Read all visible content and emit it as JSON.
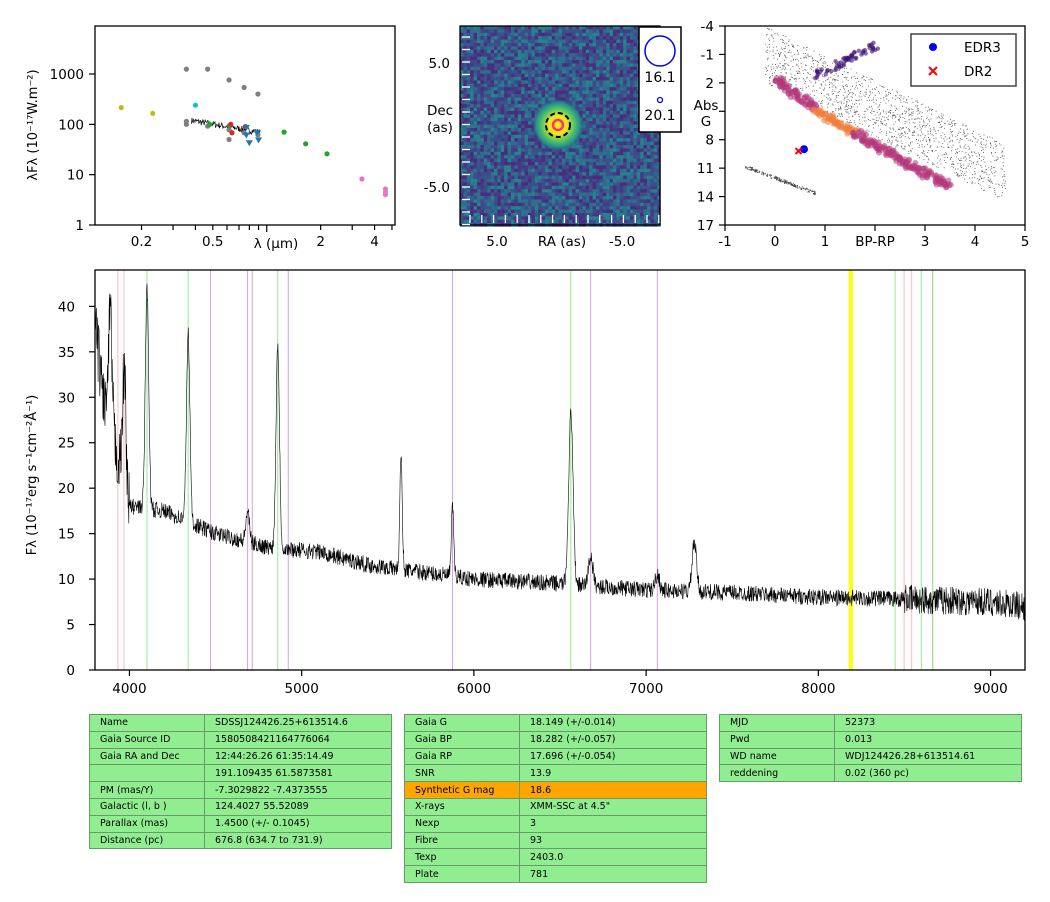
{
  "sed": {
    "ylabel": "λFλ (10⁻¹⁷W.m⁻²)",
    "xlabel": "λ (μm)",
    "yticks": [
      "1",
      "10",
      "100",
      "1000"
    ],
    "xticks": [
      "0.2",
      "0.5",
      "2",
      "4"
    ],
    "xlim": [
      0.11,
      5.2
    ],
    "ylim": [
      1,
      9000
    ],
    "xscale": "log",
    "yscale": "log"
  },
  "image": {
    "ylabel_line1": "Dec",
    "ylabel_line2": "(as)",
    "xlabel": "RA (as)",
    "yticks": [
      "5.0",
      "-5.0"
    ],
    "xticks": [
      "5.0",
      "-5.0"
    ],
    "legend": [
      "16.1",
      "20.1"
    ]
  },
  "hr": {
    "ylabel_line1": "Abs",
    "ylabel_line2": "G",
    "xlabel": "BP-RP",
    "yticks": [
      "-4",
      "-1",
      "2",
      "5",
      "8",
      "11",
      "14",
      "17"
    ],
    "xticks": [
      "-1",
      "0",
      "1",
      "3",
      "4",
      "5"
    ],
    "legend": [
      "EDR3",
      "DR2"
    ],
    "colors": {
      "edr3": "#0000ff",
      "dr2": "#ff0000"
    }
  },
  "chart_data": [
    {
      "type": "scatter",
      "panel": "sed",
      "series": [
        {
          "color": "#bcbd22",
          "x": [
            0.154,
            0.231
          ],
          "y": [
            215,
            165
          ]
        },
        {
          "color": "#7f7f7f",
          "x": [
            0.356,
            0.468,
            0.616,
            0.748,
            0.893,
            0.356,
            0.468,
            0.616,
            0.748,
            0.893,
            0.356,
            0.616
          ],
          "y": [
            1250,
            1250,
            760,
            540,
            400,
            100,
            92,
            78,
            68,
            62,
            115,
            50
          ]
        },
        {
          "color": "#17becf",
          "x": [
            0.4
          ],
          "y": [
            240
          ]
        },
        {
          "color": "#2ca02c",
          "x": [
            0.48,
            0.62,
            1.25,
            1.65,
            2.17
          ],
          "y": [
            100,
            95,
            70,
            41,
            26
          ]
        },
        {
          "color": "#d62728",
          "x": [
            0.63,
            0.64,
            0.76
          ],
          "y": [
            100,
            68,
            90
          ]
        },
        {
          "color": "#1f77b4",
          "x": [
            0.77,
            0.77,
            0.8,
            0.88,
            0.9
          ],
          "y": [
            85,
            60,
            42,
            68,
            48
          ]
        },
        {
          "color": "#e377c2",
          "x": [
            3.4,
            4.6,
            4.6,
            4.6
          ],
          "y": [
            8.2,
            5.2,
            4.5,
            4.0
          ]
        }
      ],
      "spectrum_line": {
        "x_range_um": [
          0.38,
          0.92
        ],
        "y_start": 120,
        "y_end": 70
      }
    },
    {
      "type": "scatter",
      "panel": "hr",
      "x_range": [
        -1,
        5
      ],
      "y_range": [
        17,
        -4
      ],
      "series": [
        {
          "name": "EDR3",
          "marker": "circle",
          "x": [
            0.58
          ],
          "y": [
            9.0
          ]
        },
        {
          "name": "DR2",
          "marker": "x",
          "x": [
            0.47
          ],
          "y": [
            9.2
          ]
        }
      ]
    },
    {
      "type": "line",
      "panel": "spectrum",
      "ylabel": "Fλ (10⁻¹⁷erg s⁻¹cm⁻²Å⁻¹)",
      "xlim": [
        3800,
        9200
      ],
      "ylim": [
        0,
        44
      ],
      "xticks": [
        "4000",
        "5000",
        "6000",
        "7000",
        "8000",
        "9000"
      ],
      "yticks": [
        "0",
        "5",
        "10",
        "15",
        "20",
        "25",
        "30",
        "35",
        "40"
      ],
      "continuum": [
        [
          3800,
          38
        ],
        [
          3850,
          30
        ],
        [
          3950,
          22
        ],
        [
          4000,
          18
        ],
        [
          4200,
          17.5
        ],
        [
          4500,
          15
        ],
        [
          4800,
          13.5
        ],
        [
          5100,
          13
        ],
        [
          5400,
          11.5
        ],
        [
          5800,
          10.5
        ],
        [
          6000,
          10
        ],
        [
          6500,
          9.5
        ],
        [
          7000,
          8.8
        ],
        [
          7500,
          8.5
        ],
        [
          8000,
          8
        ],
        [
          8500,
          7.8
        ],
        [
          9000,
          7.5
        ],
        [
          9200,
          7
        ]
      ],
      "emission_lines": [
        {
          "x": 3889,
          "peak": 39
        },
        {
          "x": 3970,
          "peak": 33
        },
        {
          "x": 4102,
          "peak": 42
        },
        {
          "x": 4341,
          "peak": 37
        },
        {
          "x": 4686,
          "peak": 17.5
        },
        {
          "x": 4861,
          "peak": 36
        },
        {
          "x": 5577,
          "peak": 23.5
        },
        {
          "x": 5876,
          "peak": 17.8
        },
        {
          "x": 6563,
          "peak": 28
        },
        {
          "x": 6678,
          "peak": 12.5
        },
        {
          "x": 7065,
          "peak": 10.5
        },
        {
          "x": 7280,
          "peak": 14
        }
      ],
      "marker_lines": {
        "pink": [
          3933,
          3968,
          8498,
          8542,
          8662
        ],
        "green": [
          4102,
          4341,
          4861,
          6563,
          8446,
          8598,
          8665
        ],
        "violet": [
          4471,
          4686,
          4713,
          4922,
          5876,
          6678,
          7065
        ],
        "yellow": [
          8183,
          8195
        ]
      }
    }
  ],
  "table1": [
    [
      "Name",
      "SDSSJ124426.25+613514.6"
    ],
    [
      "Gaia Source ID",
      "1580508421164776064"
    ],
    [
      "Gaia RA and Dec",
      "12:44:26.26    61:35:14.49"
    ],
    [
      "",
      "191.109435    61.5873581"
    ],
    [
      "PM (mas/Y)",
      "-7.3029822    -7.4373555"
    ],
    [
      "Galactic (l, b )",
      "124.4027    55.52089"
    ],
    [
      "Parallax (mas)",
      "1.4500 (+/- 0.1045)"
    ],
    [
      "Distance (pc)",
      "676.8 (634.7 to 731.9)"
    ]
  ],
  "table2": [
    [
      "Gaia G",
      "18.149 (+/-0.014)"
    ],
    [
      "Gaia BP",
      "18.282 (+/-0.057)"
    ],
    [
      "Gaia RP",
      "17.696 (+/-0.054)"
    ],
    [
      "SNR",
      "13.9"
    ],
    [
      "Synthetic G mag",
      "18.6"
    ],
    [
      "X-rays",
      "XMM-SSC at 4.5\""
    ],
    [
      "Nexp",
      "3"
    ],
    [
      "Fibre",
      "93"
    ],
    [
      "Texp",
      "2403.0"
    ],
    [
      "Plate",
      "781"
    ]
  ],
  "table3": [
    [
      "MJD",
      "52373"
    ],
    [
      "Pwd",
      "0.013"
    ],
    [
      "WD name",
      "WDJ124426.28+613514.61"
    ],
    [
      "reddening",
      "0.02 (360 pc)"
    ]
  ],
  "highlight_color": "#ffa500",
  "table_color": "#90ee90"
}
